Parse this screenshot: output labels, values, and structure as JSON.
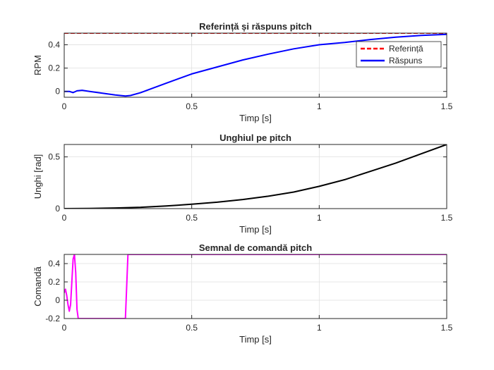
{
  "chart_data": [
    {
      "type": "line",
      "title": "Referință și răspuns pitch",
      "xlabel": "Timp [s]",
      "ylabel": "RPM",
      "xlim": [
        0,
        1.5
      ],
      "ylim": [
        -0.05,
        0.5
      ],
      "xticks": [
        0,
        0.5,
        1,
        1.5
      ],
      "xtick_labels": [
        "0",
        "0.5",
        "1",
        "1.5"
      ],
      "yticks": [
        0,
        0.2,
        0.4
      ],
      "ytick_labels": [
        "0",
        "0.2",
        "0.4"
      ],
      "grid": true,
      "legend_position": "top-right",
      "series": [
        {
          "name": "Referință",
          "color": "#ff0000",
          "style": "dashed",
          "x": [
            0,
            1.5
          ],
          "y": [
            0.5,
            0.5
          ]
        },
        {
          "name": "Răspuns",
          "color": "#0000ff",
          "style": "solid",
          "x": [
            0,
            0.02,
            0.035,
            0.05,
            0.07,
            0.1,
            0.15,
            0.2,
            0.24,
            0.26,
            0.3,
            0.4,
            0.5,
            0.6,
            0.7,
            0.8,
            0.9,
            1.0,
            1.1,
            1.2,
            1.3,
            1.4,
            1.5
          ],
          "y": [
            0.0,
            0.0,
            -0.01,
            0.005,
            0.01,
            0.0,
            -0.015,
            -0.03,
            -0.04,
            -0.035,
            -0.01,
            0.07,
            0.15,
            0.21,
            0.27,
            0.32,
            0.365,
            0.4,
            0.42,
            0.445,
            0.465,
            0.48,
            0.49
          ]
        }
      ]
    },
    {
      "type": "line",
      "title": "Unghiul pe pitch",
      "xlabel": "Timp [s]",
      "ylabel": "Unghi [rad]",
      "xlim": [
        0,
        1.5
      ],
      "ylim": [
        0,
        0.62
      ],
      "xticks": [
        0,
        0.5,
        1,
        1.5
      ],
      "xtick_labels": [
        "0",
        "0.5",
        "1",
        "1.5"
      ],
      "yticks": [
        0,
        0.5
      ],
      "ytick_labels": [
        "0",
        "0.5"
      ],
      "grid": true,
      "series": [
        {
          "color": "#000000",
          "style": "solid",
          "x": [
            0,
            0.1,
            0.2,
            0.3,
            0.4,
            0.5,
            0.6,
            0.7,
            0.8,
            0.9,
            1.0,
            1.1,
            1.2,
            1.3,
            1.4,
            1.5
          ],
          "y": [
            0.0,
            0.002,
            0.006,
            0.013,
            0.025,
            0.042,
            0.062,
            0.088,
            0.12,
            0.16,
            0.215,
            0.28,
            0.36,
            0.44,
            0.53,
            0.62
          ]
        }
      ]
    },
    {
      "type": "line",
      "title": "Semnal de comandă pitch",
      "xlabel": "Timp [s]",
      "ylabel": "Comandă",
      "xlim": [
        0,
        1.5
      ],
      "ylim": [
        -0.2,
        0.5
      ],
      "xticks": [
        0,
        0.5,
        1,
        1.5
      ],
      "xtick_labels": [
        "0",
        "0.5",
        "1",
        "1.5"
      ],
      "yticks": [
        -0.2,
        0,
        0.2,
        0.4
      ],
      "ytick_labels": [
        "-0.2",
        "0",
        "0.2",
        "0.4"
      ],
      "grid": true,
      "series": [
        {
          "color": "#ff00ff",
          "style": "solid",
          "x": [
            0,
            0.005,
            0.01,
            0.015,
            0.02,
            0.025,
            0.03,
            0.035,
            0.04,
            0.045,
            0.05,
            0.055,
            0.06,
            0.24,
            0.25,
            0.26,
            1.5
          ],
          "y": [
            0.08,
            0.12,
            0.05,
            -0.05,
            -0.12,
            -0.05,
            0.2,
            0.45,
            0.5,
            0.3,
            -0.1,
            -0.2,
            -0.2,
            -0.2,
            0.5,
            0.5,
            0.5
          ]
        }
      ]
    }
  ]
}
